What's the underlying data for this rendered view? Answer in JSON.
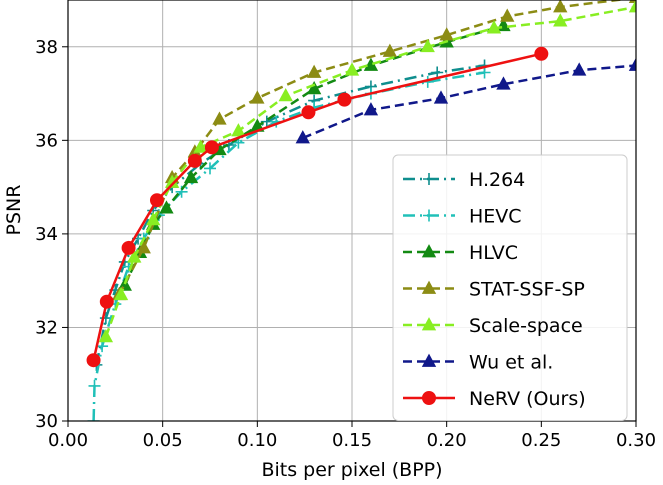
{
  "chart_data": {
    "type": "line",
    "xlabel": "Bits per pixel (BPP)",
    "ylabel": "PSNR",
    "xlim": [
      0.0,
      0.3
    ],
    "ylim": [
      30,
      39
    ],
    "xticks": [
      "0.00",
      "0.05",
      "0.10",
      "0.15",
      "0.20",
      "0.25",
      "0.30"
    ],
    "yticks": [
      "30",
      "32",
      "34",
      "36",
      "38"
    ],
    "grid": true,
    "legend_position": "lower-right",
    "series": [
      {
        "name": "H.264",
        "color": "#0f8e8e",
        "dash": "12,5,2,5",
        "marker": "plus",
        "points": [
          [
            0.015,
            31.2
          ],
          [
            0.02,
            32.2
          ],
          [
            0.025,
            32.8
          ],
          [
            0.03,
            33.4
          ],
          [
            0.037,
            33.9
          ],
          [
            0.045,
            34.5
          ],
          [
            0.055,
            35.0
          ],
          [
            0.07,
            35.5
          ],
          [
            0.085,
            35.9
          ],
          [
            0.105,
            36.4
          ],
          [
            0.13,
            36.85
          ],
          [
            0.16,
            37.15
          ],
          [
            0.195,
            37.45
          ],
          [
            0.22,
            37.6
          ]
        ]
      },
      {
        "name": "HEVC",
        "color": "#20c0b8",
        "dash": "12,5,2,5",
        "marker": "plus",
        "points": [
          [
            0.0135,
            30.0
          ],
          [
            0.014,
            30.75
          ],
          [
            0.018,
            31.6
          ],
          [
            0.025,
            32.5
          ],
          [
            0.032,
            33.3
          ],
          [
            0.04,
            33.9
          ],
          [
            0.048,
            34.4
          ],
          [
            0.06,
            34.9
          ],
          [
            0.075,
            35.4
          ],
          [
            0.09,
            35.95
          ],
          [
            0.11,
            36.4
          ],
          [
            0.13,
            36.7
          ],
          [
            0.16,
            37.0
          ],
          [
            0.19,
            37.25
          ],
          [
            0.22,
            37.45
          ]
        ]
      },
      {
        "name": "HLVC",
        "color": "#138a13",
        "dash": "9,5",
        "marker": "triangle",
        "points": [
          [
            0.03,
            32.9
          ],
          [
            0.038,
            33.6
          ],
          [
            0.045,
            34.2
          ],
          [
            0.052,
            34.55
          ],
          [
            0.065,
            35.2
          ],
          [
            0.08,
            35.8
          ],
          [
            0.1,
            36.3
          ],
          [
            0.13,
            37.1
          ],
          [
            0.16,
            37.6
          ],
          [
            0.2,
            38.1
          ],
          [
            0.23,
            38.45
          ]
        ]
      },
      {
        "name": "STAT-SSF-SP",
        "color": "#8c8c14",
        "dash": "9,5",
        "marker": "triangle",
        "points": [
          [
            0.027,
            32.7
          ],
          [
            0.04,
            33.7
          ],
          [
            0.055,
            35.2
          ],
          [
            0.067,
            35.75
          ],
          [
            0.08,
            36.45
          ],
          [
            0.1,
            36.9
          ],
          [
            0.13,
            37.45
          ],
          [
            0.17,
            37.9
          ],
          [
            0.2,
            38.25
          ],
          [
            0.232,
            38.65
          ],
          [
            0.26,
            38.85
          ],
          [
            0.3,
            39.05
          ]
        ]
      },
      {
        "name": "Scale-space",
        "color": "#88ee22",
        "dash": "9,5",
        "marker": "triangle",
        "points": [
          [
            0.02,
            31.8
          ],
          [
            0.028,
            32.7
          ],
          [
            0.035,
            33.5
          ],
          [
            0.045,
            34.3
          ],
          [
            0.055,
            35.1
          ],
          [
            0.07,
            35.85
          ],
          [
            0.09,
            36.2
          ],
          [
            0.115,
            36.95
          ],
          [
            0.15,
            37.5
          ],
          [
            0.19,
            38.0
          ],
          [
            0.225,
            38.4
          ],
          [
            0.26,
            38.55
          ],
          [
            0.3,
            38.85
          ]
        ]
      },
      {
        "name": "Wu et al.",
        "color": "#10188a",
        "dash": "9,5",
        "marker": "triangle",
        "points": [
          [
            0.124,
            36.05
          ],
          [
            0.16,
            36.65
          ],
          [
            0.197,
            36.9
          ],
          [
            0.23,
            37.2
          ],
          [
            0.27,
            37.5
          ],
          [
            0.3,
            37.6
          ]
        ]
      },
      {
        "name": "NeRV (Ours)",
        "color": "#ee1111",
        "dash": "",
        "marker": "circle",
        "points": [
          [
            0.0135,
            31.3
          ],
          [
            0.0205,
            32.55
          ],
          [
            0.032,
            33.7
          ],
          [
            0.047,
            34.72
          ],
          [
            0.067,
            35.56
          ],
          [
            0.076,
            35.85
          ],
          [
            0.127,
            36.6
          ],
          [
            0.146,
            36.87
          ],
          [
            0.25,
            37.85
          ]
        ]
      }
    ]
  }
}
